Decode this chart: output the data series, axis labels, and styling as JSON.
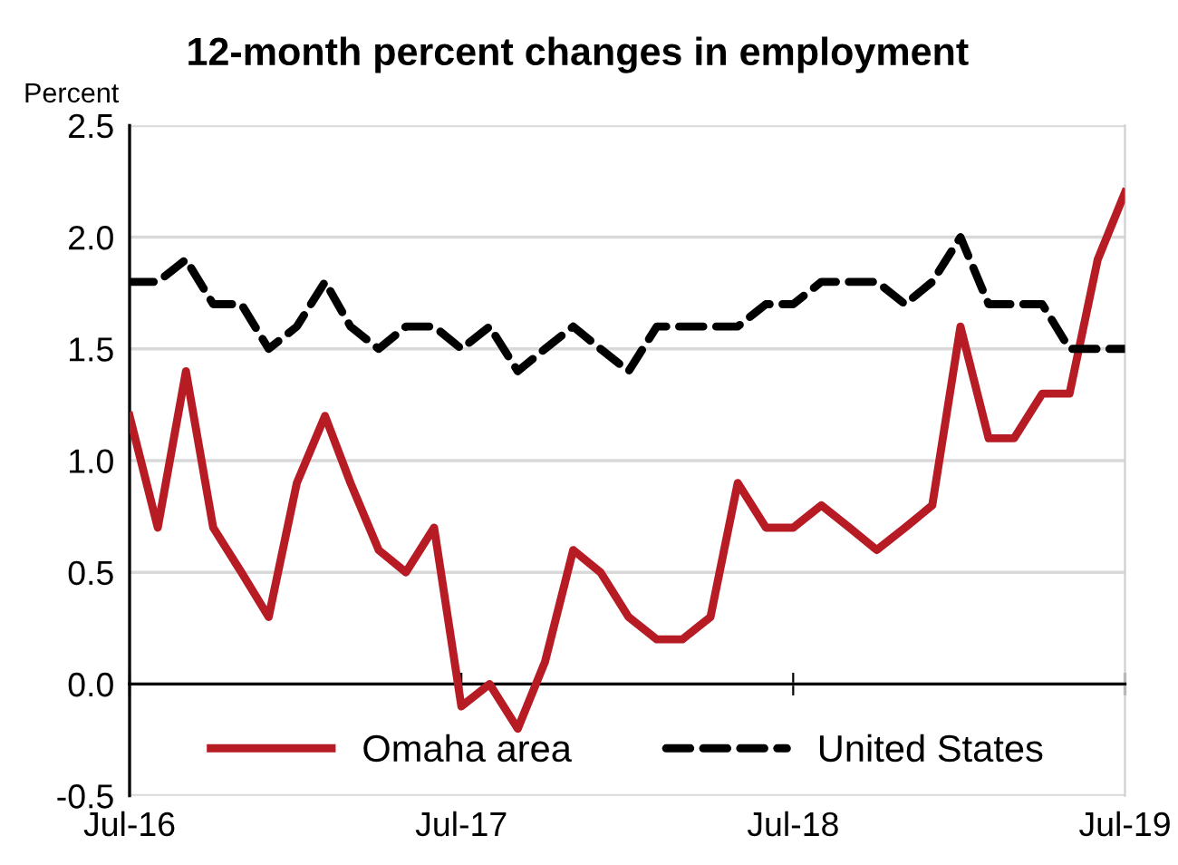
{
  "chart_data": {
    "type": "line",
    "title": "12-month percent changes in employment",
    "ylabel": "Percent",
    "x": [
      "2016-07",
      "2016-08",
      "2016-09",
      "2016-10",
      "2016-11",
      "2016-12",
      "2017-01",
      "2017-02",
      "2017-03",
      "2017-04",
      "2017-05",
      "2017-06",
      "2017-07",
      "2017-08",
      "2017-09",
      "2017-10",
      "2017-11",
      "2017-12",
      "2018-01",
      "2018-02",
      "2018-03",
      "2018-04",
      "2018-05",
      "2018-06",
      "2018-07",
      "2018-08",
      "2018-09",
      "2018-10",
      "2018-11",
      "2018-12",
      "2019-01",
      "2019-02",
      "2019-03",
      "2019-04",
      "2019-05",
      "2019-06",
      "2019-07"
    ],
    "series": [
      {
        "name": "Omaha area",
        "color": "#b71c24",
        "line_style": "solid",
        "values": [
          1.2,
          0.7,
          1.4,
          0.7,
          0.5,
          0.3,
          0.9,
          1.2,
          0.9,
          0.6,
          0.5,
          0.7,
          -0.1,
          0.0,
          -0.2,
          0.1,
          0.6,
          0.5,
          0.3,
          0.2,
          0.2,
          0.3,
          0.9,
          0.7,
          0.7,
          0.8,
          0.7,
          0.6,
          0.7,
          0.8,
          1.6,
          1.1,
          1.1,
          1.3,
          1.3,
          1.9,
          2.2
        ]
      },
      {
        "name": "United States",
        "color": "#000000",
        "line_style": "dashed",
        "values": [
          1.8,
          1.8,
          1.9,
          1.7,
          1.7,
          1.5,
          1.6,
          1.8,
          1.6,
          1.5,
          1.6,
          1.6,
          1.5,
          1.6,
          1.4,
          1.5,
          1.6,
          1.5,
          1.4,
          1.6,
          1.6,
          1.6,
          1.6,
          1.7,
          1.7,
          1.8,
          1.8,
          1.8,
          1.7,
          1.8,
          2.0,
          1.7,
          1.7,
          1.7,
          1.5,
          1.5,
          1.5
        ]
      }
    ],
    "xlim": [
      "2016-07",
      "2019-07"
    ],
    "xticks": [
      {
        "value": "2016-07",
        "label": "Jul-16"
      },
      {
        "value": "2017-07",
        "label": "Jul-17"
      },
      {
        "value": "2018-07",
        "label": "Jul-18"
      },
      {
        "value": "2019-07",
        "label": "Jul-19"
      }
    ],
    "ylim": [
      -0.5,
      2.5
    ],
    "yticks": [
      {
        "value": -0.5,
        "label": "-0.5"
      },
      {
        "value": 0,
        "label": "0.0"
      },
      {
        "value": 0.5,
        "label": "0.5"
      },
      {
        "value": 1,
        "label": "1.0"
      },
      {
        "value": 1.5,
        "label": "1.5"
      },
      {
        "value": 2,
        "label": "2.0"
      },
      {
        "value": 2.5,
        "label": "2.5"
      }
    ],
    "grid": "y",
    "legend": "bottom",
    "marker": "none"
  }
}
